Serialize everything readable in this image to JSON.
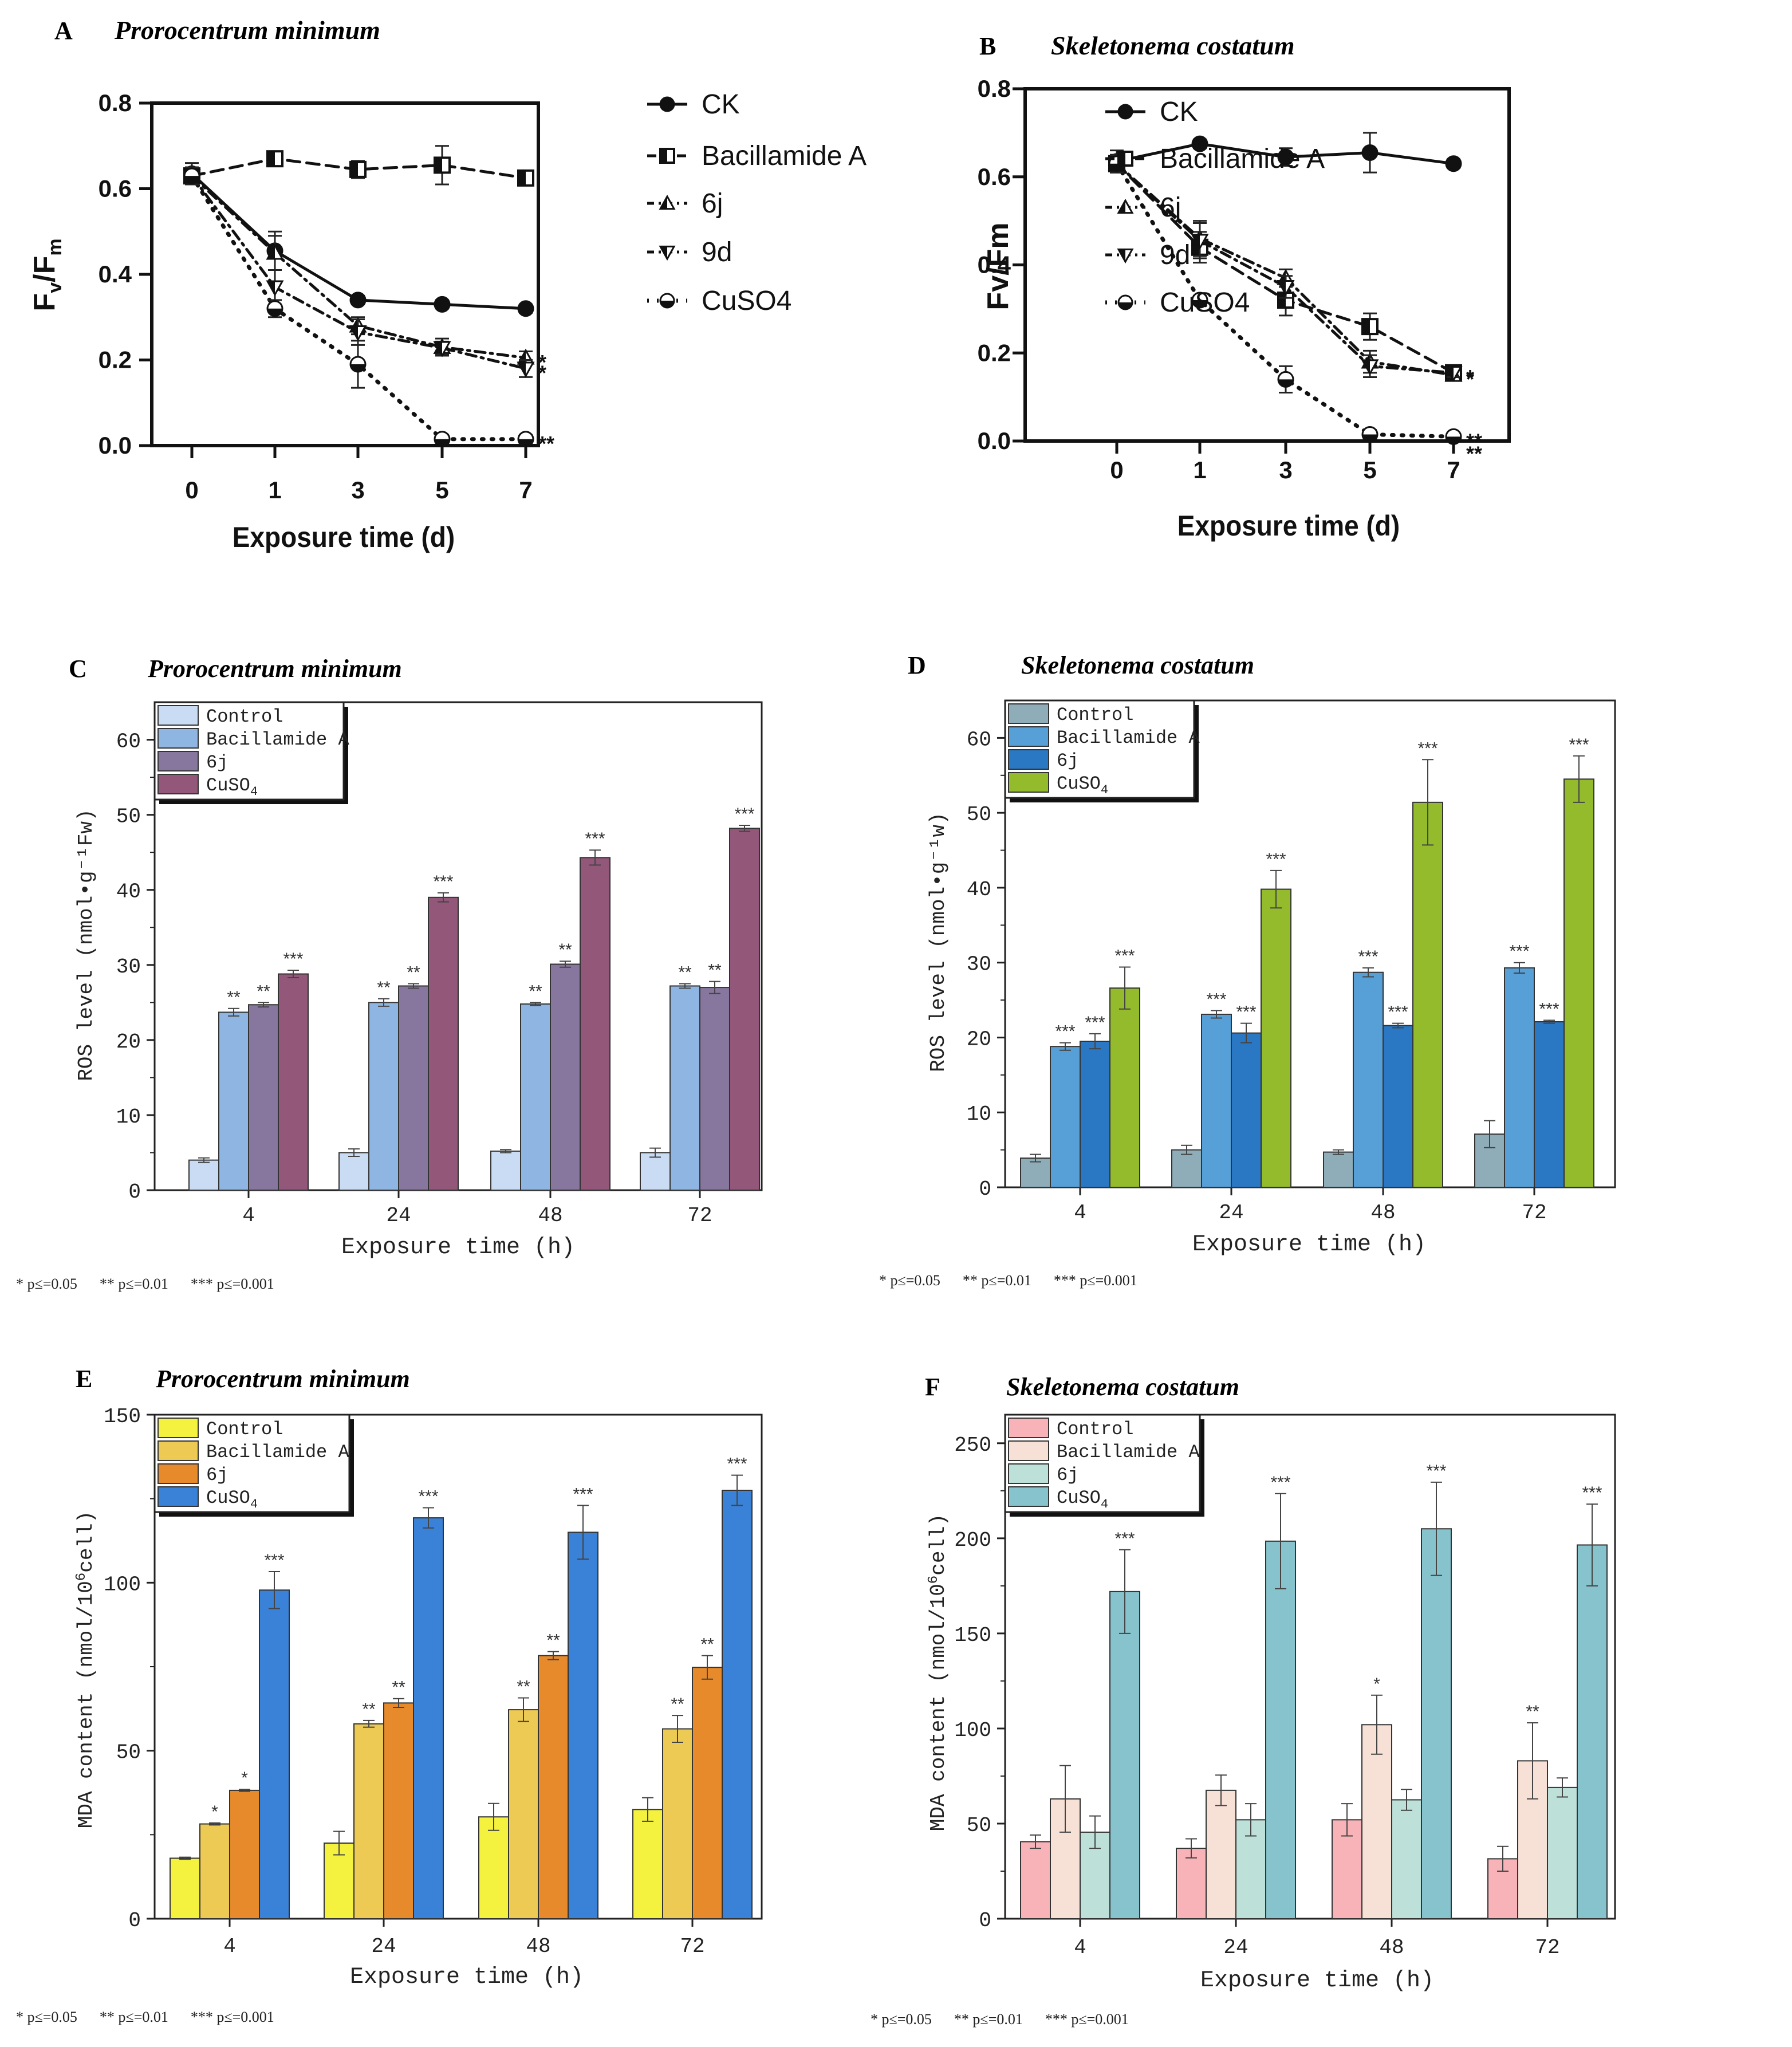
{
  "chart_data": [
    {
      "id": "A",
      "type": "line",
      "panel_label": "A",
      "title": "Prorocentrum minimum",
      "xlabel": "Exposure time (d)",
      "ylabel_main": "F",
      "ylabel_sub1": "v",
      "ylabel_slash": "/F",
      "ylabel_sub2": "m",
      "x": [
        0,
        1,
        3,
        5,
        7
      ],
      "x_tick_labels": [
        "0",
        "1",
        "3",
        "5",
        "7"
      ],
      "ylim": [
        0,
        0.8
      ],
      "y_ticks": [
        0,
        0.2,
        0.4,
        0.6,
        0.8
      ],
      "y_tick_labels": [
        "0.0",
        "0.2",
        "0.4",
        "0.6",
        "0.8"
      ],
      "series": [
        {
          "name": "CK",
          "values": [
            0.635,
            0.455,
            0.34,
            0.33,
            0.32
          ],
          "err": [
            0.025,
            0.045,
            0.01,
            0.01,
            0.01
          ],
          "dash": "solid",
          "marker": "circle",
          "end_label": ""
        },
        {
          "name": "Bacillamide A",
          "values": [
            0.63,
            0.67,
            0.645,
            0.655,
            0.625
          ],
          "err": [
            0.02,
            0.015,
            0.02,
            0.045,
            0.015
          ],
          "dash": "dash",
          "marker": "square-half",
          "end_label": ""
        },
        {
          "name": "6j",
          "values": [
            0.63,
            0.45,
            0.28,
            0.23,
            0.205
          ],
          "err": [
            0.02,
            0.04,
            0.02,
            0.02,
            0.015
          ],
          "dash": "dashdot",
          "marker": "triangle-up",
          "end_label": "*"
        },
        {
          "name": "9d",
          "values": [
            0.63,
            0.37,
            0.265,
            0.228,
            0.18
          ],
          "err": [
            0.02,
            0.04,
            0.03,
            0.015,
            0.02
          ],
          "dash": "dashdot",
          "marker": "triangle-down",
          "end_label": "*"
        },
        {
          "name": "CuSO4",
          "values": [
            0.63,
            0.32,
            0.19,
            0.015,
            0.015
          ],
          "err": [
            0.02,
            0.02,
            0.055,
            0.01,
            0.01
          ],
          "dash": "dot",
          "marker": "circle-half",
          "end_label": "**"
        }
      ]
    },
    {
      "id": "B",
      "type": "line",
      "panel_label": "B",
      "title": "Skeletonema costatum",
      "xlabel": "Exposure time (d)",
      "ylabel_main": "Fv/Fm",
      "x": [
        0,
        1,
        3,
        5,
        7
      ],
      "x_tick_labels": [
        "0",
        "1",
        "3",
        "5",
        "7"
      ],
      "ylim": [
        0,
        0.8
      ],
      "y_ticks": [
        0,
        0.2,
        0.4,
        0.6,
        0.8
      ],
      "y_tick_labels": [
        "0.0",
        "0.2",
        "0.4",
        "0.6",
        "0.8"
      ],
      "series": [
        {
          "name": "CK",
          "values": [
            0.635,
            0.675,
            0.645,
            0.655,
            0.63
          ],
          "err": [
            0.025,
            0.01,
            0.02,
            0.045,
            0.01
          ],
          "dash": "solid",
          "marker": "circle",
          "end_label": ""
        },
        {
          "name": "Bacillamide A",
          "values": [
            0.63,
            0.44,
            0.32,
            0.26,
            0.155
          ],
          "err": [
            0.02,
            0.035,
            0.035,
            0.03,
            0.015
          ],
          "dash": "dash",
          "marker": "square-half",
          "end_label": "*"
        },
        {
          "name": "6j",
          "values": [
            0.63,
            0.46,
            0.37,
            0.18,
            0.15
          ],
          "err": [
            0.02,
            0.04,
            0.02,
            0.025,
            0.01
          ],
          "dash": "dashdot",
          "marker": "triangle-up",
          "end_label": "*"
        },
        {
          "name": "9d",
          "values": [
            0.63,
            0.455,
            0.35,
            0.17,
            0.155
          ],
          "err": [
            0.02,
            0.04,
            0.025,
            0.025,
            0.01
          ],
          "dash": "dashdot",
          "marker": "triangle-down",
          "end_label": ""
        },
        {
          "name": "CuSO4",
          "values": [
            0.63,
            0.32,
            0.14,
            0.015,
            0.01
          ],
          "err": [
            0.02,
            0.01,
            0.03,
            0.01,
            0.005
          ],
          "dash": "dot",
          "marker": "circle-half",
          "end_label": "**"
        }
      ],
      "extra_end_label": "**"
    },
    {
      "id": "C",
      "type": "bar",
      "panel_label": "C",
      "title": "Prorocentrum minimum",
      "xlabel": "Exposure time (h)",
      "ylabel": "ROS level (nmol•g⁻¹Fw)",
      "categories": [
        "4",
        "24",
        "48",
        "72"
      ],
      "ylim": [
        0,
        65
      ],
      "y_ticks": [
        0,
        10,
        20,
        30,
        40,
        50,
        60
      ],
      "y_tick_labels": [
        "0",
        "10",
        "20",
        "30",
        "40",
        "50",
        "60"
      ],
      "series": [
        {
          "name": "Control",
          "label_main": "Control",
          "label_sub": "",
          "color": "#c9dcf4",
          "values": [
            4,
            5,
            5.2,
            5
          ],
          "err": [
            0.3,
            0.5,
            0.2,
            0.6
          ],
          "sig": [
            "",
            "",
            "",
            ""
          ]
        },
        {
          "name": "Bacillamide A",
          "label_main": "Bacillamide A",
          "label_sub": "",
          "color": "#8fb6e2",
          "values": [
            23.7,
            25,
            24.8,
            27.2
          ],
          "err": [
            0.5,
            0.5,
            0.2,
            0.3
          ],
          "sig": [
            "**",
            "**",
            "**",
            "**"
          ]
        },
        {
          "name": "6j",
          "label_main": "6j",
          "label_sub": "",
          "color": "#87779e",
          "values": [
            24.7,
            27.2,
            30.1,
            27
          ],
          "err": [
            0.3,
            0.3,
            0.4,
            0.8
          ],
          "sig": [
            "**",
            "**",
            "**",
            "**"
          ]
        },
        {
          "name": "CuSO4",
          "label_main": "CuSO",
          "label_sub": "4",
          "color": "#925779",
          "values": [
            28.8,
            39,
            44.3,
            48.2
          ],
          "err": [
            0.5,
            0.6,
            1,
            0.4
          ],
          "sig": [
            "***",
            "***",
            "***",
            "***"
          ]
        }
      ],
      "footnote": "* p≤=0.05      ** p≤=0.01      *** p≤=0.001"
    },
    {
      "id": "D",
      "type": "bar",
      "panel_label": "D",
      "title": "Skeletonema costatum",
      "xlabel": "Exposure time (h)",
      "ylabel": "ROS level (nmol•g⁻¹w)",
      "categories": [
        "4",
        "24",
        "48",
        "72"
      ],
      "ylim": [
        0,
        65
      ],
      "y_ticks": [
        0,
        10,
        20,
        30,
        40,
        50,
        60
      ],
      "y_tick_labels": [
        "0",
        "10",
        "20",
        "30",
        "40",
        "50",
        "60"
      ],
      "series": [
        {
          "name": "Control",
          "label_main": "Control",
          "label_sub": "",
          "color": "#8fadb8",
          "values": [
            3.9,
            5,
            4.7,
            7.1
          ],
          "err": [
            0.5,
            0.6,
            0.3,
            1.8
          ],
          "sig": [
            "",
            "",
            "",
            ""
          ]
        },
        {
          "name": "Bacillamide A",
          "label_main": "Bacillamide A",
          "label_sub": "",
          "color": "#579fd7",
          "values": [
            18.8,
            23.1,
            28.7,
            29.3
          ],
          "err": [
            0.5,
            0.5,
            0.6,
            0.7
          ],
          "sig": [
            "***",
            "***",
            "***",
            "***"
          ]
        },
        {
          "name": "6j",
          "label_main": "6j",
          "label_sub": "",
          "color": "#2a78c4",
          "values": [
            19.5,
            20.6,
            21.6,
            22.1
          ],
          "err": [
            1,
            1.3,
            0.3,
            0.2
          ],
          "sig": [
            "***",
            "***",
            "***",
            "***"
          ]
        },
        {
          "name": "CuSO4",
          "label_main": "CuSO",
          "label_sub": "4",
          "color": "#93bb2b",
          "values": [
            26.6,
            39.8,
            51.4,
            54.5
          ],
          "err": [
            2.8,
            2.5,
            5.7,
            3.1
          ],
          "sig": [
            "***",
            "***",
            "***",
            "***"
          ]
        }
      ],
      "footnote": "* p≤=0.05      ** p≤=0.01      *** p≤=0.001"
    },
    {
      "id": "E",
      "type": "bar",
      "panel_label": "E",
      "title": "Prorocentrum minimum",
      "xlabel": "Exposure time (h)",
      "ylabel_pre": "MDA content (nmol/10",
      "ylabel_sup": "6",
      "ylabel_post": "cell)",
      "categories": [
        "4",
        "24",
        "48",
        "72"
      ],
      "ylim": [
        0,
        150
      ],
      "y_ticks": [
        0,
        50,
        100,
        150
      ],
      "y_tick_labels": [
        "0",
        "50",
        "100",
        "150"
      ],
      "series": [
        {
          "name": "Control",
          "label_main": "Control",
          "label_sub": "",
          "color": "#f5f23f",
          "values": [
            18,
            22.5,
            30.3,
            32.5
          ],
          "err": [
            0.3,
            3.5,
            4,
            3.5
          ],
          "sig": [
            "",
            "",
            "",
            ""
          ]
        },
        {
          "name": "Bacillamide A",
          "label_main": "Bacillamide A",
          "label_sub": "",
          "color": "#edca53",
          "values": [
            28.2,
            58,
            62.2,
            56.5
          ],
          "err": [
            0.3,
            1,
            3.5,
            4
          ],
          "sig": [
            "*",
            "**",
            "**",
            "**"
          ]
        },
        {
          "name": "6j",
          "label_main": "6j",
          "label_sub": "",
          "color": "#e78a2c",
          "values": [
            38.2,
            64.2,
            78.3,
            74.8
          ],
          "err": [
            0.3,
            1.3,
            1.2,
            3.5
          ],
          "sig": [
            "*",
            "**",
            "**",
            "**"
          ]
        },
        {
          "name": "CuSO4",
          "label_main": "CuSO",
          "label_sub": "4",
          "color": "#3a82d8",
          "values": [
            97.8,
            119.3,
            115,
            127.5
          ],
          "err": [
            5.5,
            3,
            8,
            4.5
          ],
          "sig": [
            "***",
            "***",
            "***",
            "***"
          ]
        }
      ],
      "footnote": "* p≤=0.05      ** p≤=0.01      *** p≤=0.001"
    },
    {
      "id": "F",
      "type": "bar",
      "panel_label": "F",
      "title": "Skeletonema costatum",
      "xlabel": "Exposure time (h)",
      "ylabel_pre": "MDA content (nmol/10",
      "ylabel_sup": "6",
      "ylabel_post": "cell)",
      "categories": [
        "4",
        "24",
        "48",
        "72"
      ],
      "ylim": [
        0,
        265
      ],
      "y_ticks": [
        0,
        50,
        100,
        150,
        200,
        250
      ],
      "y_tick_labels": [
        "0",
        "50",
        "100",
        "150",
        "200",
        "250"
      ],
      "series": [
        {
          "name": "Control",
          "label_main": "Control",
          "label_sub": "",
          "color": "#f8b3b8",
          "values": [
            40.5,
            37,
            52,
            31.5
          ],
          "err": [
            3.5,
            5,
            8.5,
            6.5
          ],
          "sig": [
            "",
            "",
            "",
            ""
          ]
        },
        {
          "name": "Bacillamide A",
          "label_main": "Bacillamide A",
          "label_sub": "",
          "color": "#f7e0d6",
          "values": [
            63,
            67.5,
            102,
            83
          ],
          "err": [
            17.5,
            8,
            15.5,
            20
          ],
          "sig": [
            "",
            "",
            "*",
            "**"
          ]
        },
        {
          "name": "6j",
          "label_main": "6j",
          "label_sub": "",
          "color": "#bde0d9",
          "values": [
            45.5,
            52,
            62.5,
            69
          ],
          "err": [
            8.5,
            8.5,
            5.5,
            5
          ],
          "sig": [
            "",
            "",
            "",
            ""
          ]
        },
        {
          "name": "CuSO4",
          "label_main": "CuSO",
          "label_sub": "4",
          "color": "#87c3cc",
          "values": [
            172,
            198.5,
            205,
            196.5
          ],
          "err": [
            22,
            25,
            24.5,
            21.5
          ],
          "sig": [
            "***",
            "***",
            "***",
            "***"
          ]
        }
      ],
      "footnote": "* p≤=0.05      ** p≤=0.01      *** p≤=0.001"
    }
  ]
}
